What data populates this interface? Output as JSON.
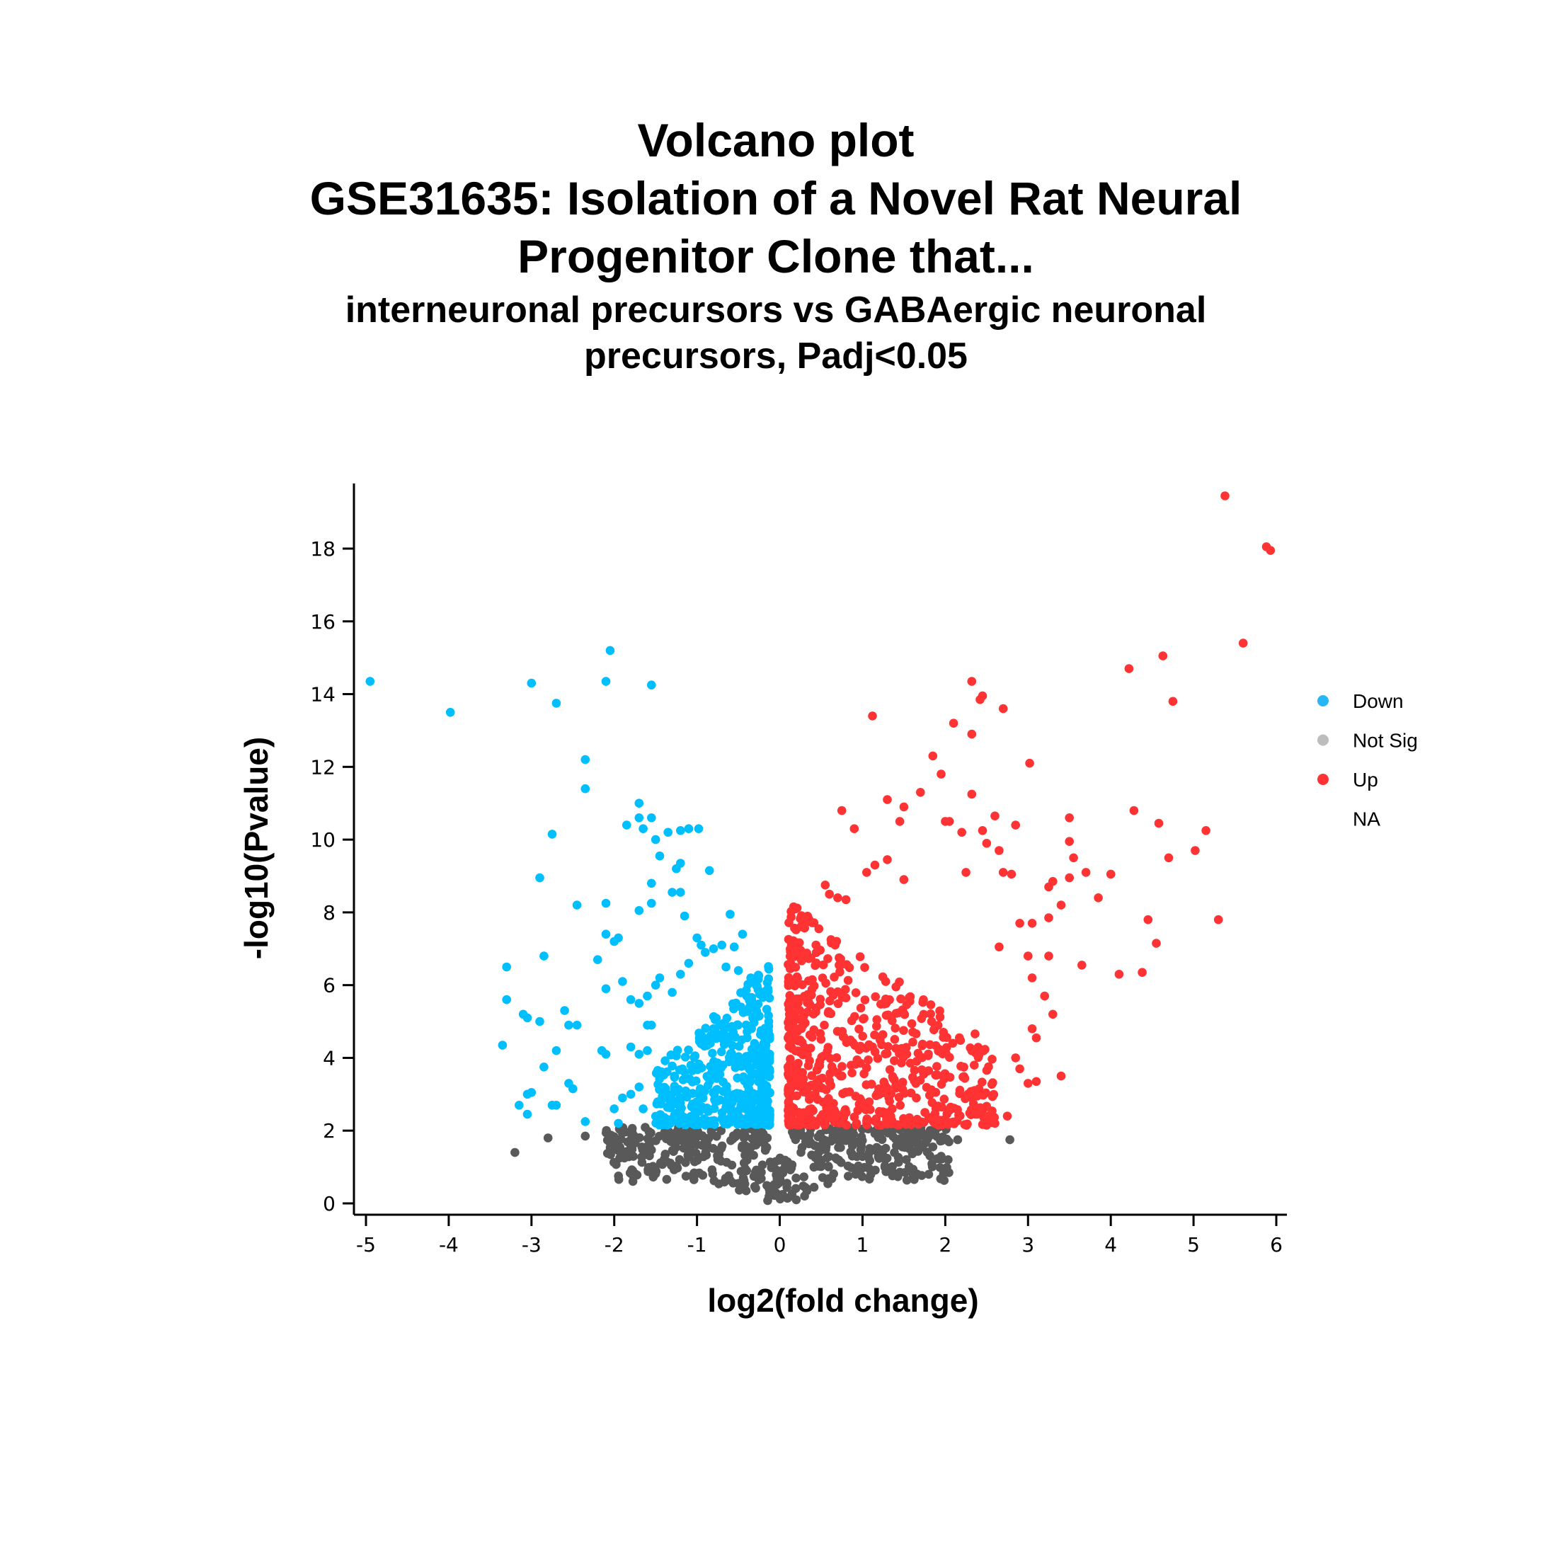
{
  "chart_data": {
    "type": "scatter",
    "title_lines": [
      "Volcano plot",
      "GSE31635: Isolation of a Novel Rat Neural",
      "Progenitor Clone that..."
    ],
    "subtitle_lines": [
      "interneuronal precursors vs GABAergic neuronal",
      "precursors, Padj<0.05"
    ],
    "xlabel": "log2(fold change)",
    "ylabel": "-log10(Pvalue)",
    "xlim": [
      -5.15,
      6.15
    ],
    "ylim": [
      -0.3,
      19.8
    ],
    "x_ticks": [
      -5,
      -4,
      -3,
      -2,
      -1,
      0,
      1,
      2,
      3,
      4,
      5,
      6
    ],
    "y_ticks": [
      0,
      2,
      4,
      6,
      8,
      10,
      12,
      14,
      16,
      18
    ],
    "grid": false,
    "legend_position": "right",
    "legend": [
      {
        "label": "Down",
        "color": "#29b6f6"
      },
      {
        "label": "Not Sig",
        "color": "#bdbdbd"
      },
      {
        "label": "Up",
        "color": "#ff3333"
      },
      {
        "label": "NA",
        "color": ""
      }
    ],
    "series": [
      {
        "key": "down",
        "color": "#00bfff",
        "points": [
          [
            -4.95,
            14.35
          ],
          [
            -3.98,
            13.5
          ],
          [
            -3.0,
            14.3
          ],
          [
            -2.7,
            13.75
          ],
          [
            -2.1,
            14.35
          ],
          [
            -2.05,
            15.2
          ],
          [
            -1.55,
            14.25
          ],
          [
            -2.35,
            12.2
          ],
          [
            -2.35,
            11.4
          ],
          [
            -2.75,
            10.15
          ],
          [
            -2.9,
            8.95
          ],
          [
            -2.45,
            8.2
          ],
          [
            -2.1,
            8.25
          ],
          [
            -1.7,
            11.0
          ],
          [
            -1.85,
            10.4
          ],
          [
            -1.7,
            10.6
          ],
          [
            -1.55,
            10.6
          ],
          [
            -1.65,
            10.3
          ],
          [
            -1.5,
            10.0
          ],
          [
            -1.35,
            10.2
          ],
          [
            -1.2,
            10.25
          ],
          [
            -1.1,
            10.3
          ],
          [
            -0.98,
            10.3
          ],
          [
            -1.45,
            9.55
          ],
          [
            -1.2,
            9.35
          ],
          [
            -1.25,
            9.2
          ],
          [
            -0.85,
            9.15
          ],
          [
            -1.55,
            8.8
          ],
          [
            -1.3,
            8.55
          ],
          [
            -1.2,
            8.55
          ],
          [
            -1.55,
            8.25
          ],
          [
            -1.7,
            8.05
          ],
          [
            -1.15,
            7.9
          ],
          [
            -0.6,
            7.95
          ],
          [
            -3.3,
            6.5
          ],
          [
            -2.85,
            6.8
          ],
          [
            -3.3,
            5.6
          ],
          [
            -3.05,
            5.1
          ],
          [
            -3.1,
            5.2
          ],
          [
            -2.9,
            5.0
          ],
          [
            -2.6,
            5.3
          ],
          [
            -2.45,
            4.9
          ],
          [
            -2.55,
            4.9
          ],
          [
            -2.7,
            4.2
          ],
          [
            -3.35,
            4.35
          ],
          [
            -2.85,
            3.75
          ],
          [
            -2.55,
            3.3
          ],
          [
            -2.5,
            3.15
          ],
          [
            -3.05,
            3.0
          ],
          [
            -3.0,
            3.05
          ],
          [
            -2.75,
            2.7
          ],
          [
            -2.7,
            2.7
          ],
          [
            -3.05,
            2.45
          ],
          [
            -3.15,
            2.7
          ],
          [
            -2.35,
            2.25
          ],
          [
            -2.1,
            4.1
          ],
          [
            -2.15,
            4.2
          ],
          [
            -2.2,
            6.7
          ],
          [
            -2.1,
            5.9
          ],
          [
            -2.1,
            7.4
          ],
          [
            -2.0,
            7.2
          ],
          [
            -1.95,
            7.3
          ],
          [
            -1.9,
            6.1
          ],
          [
            -1.8,
            5.6
          ],
          [
            -1.7,
            5.5
          ],
          [
            -1.6,
            5.7
          ],
          [
            -1.6,
            4.9
          ],
          [
            -1.55,
            4.9
          ],
          [
            -1.8,
            4.3
          ],
          [
            -1.7,
            4.1
          ],
          [
            -1.6,
            4.2
          ],
          [
            -1.9,
            2.9
          ],
          [
            -1.8,
            3.0
          ],
          [
            -1.7,
            3.2
          ],
          [
            -2.0,
            2.6
          ],
          [
            -1.95,
            2.2
          ],
          [
            -1.65,
            2.6
          ],
          [
            -1.5,
            6.0
          ],
          [
            -1.45,
            6.2
          ],
          [
            -1.3,
            5.8
          ],
          [
            -1.2,
            6.3
          ],
          [
            -1.1,
            6.6
          ],
          [
            -1.0,
            7.3
          ],
          [
            -0.95,
            7.1
          ],
          [
            -0.9,
            6.9
          ],
          [
            -0.8,
            7.0
          ],
          [
            -0.7,
            7.1
          ],
          [
            -0.55,
            7.05
          ],
          [
            -0.45,
            7.4
          ],
          [
            -0.35,
            6.2
          ],
          [
            -0.3,
            6.05
          ],
          [
            -0.4,
            5.7
          ],
          [
            -0.5,
            6.4
          ],
          [
            -0.65,
            6.5
          ]
        ],
        "cluster": {
          "count": 480,
          "seed": 11,
          "x_min": -1.5,
          "x_max": -0.12,
          "y_min": 2.15,
          "y_max": 6.6,
          "skew": "near_zero"
        }
      },
      {
        "key": "notsig",
        "color": "#595959",
        "points": [
          [
            -3.2,
            1.4
          ],
          [
            -2.8,
            1.8
          ],
          [
            -2.35,
            1.85
          ],
          [
            -0.4,
            0.9
          ],
          [
            0.1,
            0.15
          ],
          [
            0.2,
            0.1
          ],
          [
            0.3,
            0.2
          ],
          [
            2.78,
            1.75
          ],
          [
            2.15,
            1.75
          ],
          [
            1.8,
            0.8
          ]
        ],
        "cluster": {
          "count": 520,
          "seed": 23,
          "x_min": -2.1,
          "x_max": 2.05,
          "y_min": 0.05,
          "y_max": 2.1,
          "skew": "bowl"
        }
      },
      {
        "key": "up",
        "color": "#ff3333",
        "points": [
          [
            5.38,
            19.45
          ],
          [
            5.88,
            18.05
          ],
          [
            5.93,
            17.95
          ],
          [
            5.6,
            15.4
          ],
          [
            4.63,
            15.05
          ],
          [
            4.22,
            14.7
          ],
          [
            4.75,
            13.8
          ],
          [
            2.32,
            14.35
          ],
          [
            2.45,
            13.95
          ],
          [
            2.42,
            13.85
          ],
          [
            2.7,
            13.6
          ],
          [
            1.12,
            13.4
          ],
          [
            2.1,
            13.2
          ],
          [
            2.32,
            12.9
          ],
          [
            3.02,
            12.1
          ],
          [
            1.85,
            12.3
          ],
          [
            1.95,
            11.8
          ],
          [
            1.7,
            11.3
          ],
          [
            2.32,
            11.25
          ],
          [
            1.3,
            11.1
          ],
          [
            0.75,
            10.8
          ],
          [
            0.9,
            10.3
          ],
          [
            1.5,
            10.9
          ],
          [
            1.45,
            10.5
          ],
          [
            2.0,
            10.5
          ],
          [
            2.05,
            10.5
          ],
          [
            2.2,
            10.2
          ],
          [
            2.45,
            10.25
          ],
          [
            2.6,
            10.65
          ],
          [
            2.85,
            10.4
          ],
          [
            3.5,
            10.6
          ],
          [
            4.28,
            10.8
          ],
          [
            4.58,
            10.45
          ],
          [
            5.15,
            10.25
          ],
          [
            3.5,
            9.95
          ],
          [
            2.5,
            9.9
          ],
          [
            2.65,
            9.7
          ],
          [
            5.02,
            9.7
          ],
          [
            4.7,
            9.5
          ],
          [
            3.55,
            9.5
          ],
          [
            1.3,
            9.45
          ],
          [
            1.15,
            9.3
          ],
          [
            1.05,
            9.1
          ],
          [
            1.5,
            8.9
          ],
          [
            2.25,
            9.1
          ],
          [
            2.7,
            9.1
          ],
          [
            2.8,
            9.05
          ],
          [
            3.5,
            8.95
          ],
          [
            3.7,
            9.1
          ],
          [
            4.0,
            9.05
          ],
          [
            3.3,
            8.85
          ],
          [
            3.25,
            8.7
          ],
          [
            3.85,
            8.4
          ],
          [
            3.4,
            8.2
          ],
          [
            3.05,
            7.7
          ],
          [
            3.25,
            7.85
          ],
          [
            2.9,
            7.7
          ],
          [
            4.45,
            7.8
          ],
          [
            5.3,
            7.8
          ],
          [
            4.55,
            7.15
          ],
          [
            2.65,
            7.05
          ],
          [
            3.0,
            6.8
          ],
          [
            3.25,
            6.8
          ],
          [
            3.05,
            6.2
          ],
          [
            3.65,
            6.55
          ],
          [
            4.1,
            6.3
          ],
          [
            4.38,
            6.35
          ],
          [
            3.2,
            5.7
          ],
          [
            3.3,
            5.2
          ],
          [
            3.05,
            4.8
          ],
          [
            3.1,
            4.55
          ],
          [
            2.85,
            4.0
          ],
          [
            2.9,
            3.7
          ],
          [
            3.0,
            3.3
          ],
          [
            3.1,
            3.35
          ],
          [
            3.4,
            3.5
          ],
          [
            2.75,
            2.4
          ],
          [
            2.6,
            2.2
          ],
          [
            2.5,
            2.15
          ],
          [
            0.55,
            8.75
          ],
          [
            0.6,
            8.5
          ],
          [
            0.7,
            8.4
          ],
          [
            0.8,
            8.35
          ]
        ],
        "cluster": {
          "count": 640,
          "seed": 37,
          "x_min": 0.1,
          "x_max": 2.6,
          "y_min": 2.15,
          "y_max": 8.3,
          "skew": "near_zero"
        }
      }
    ]
  }
}
